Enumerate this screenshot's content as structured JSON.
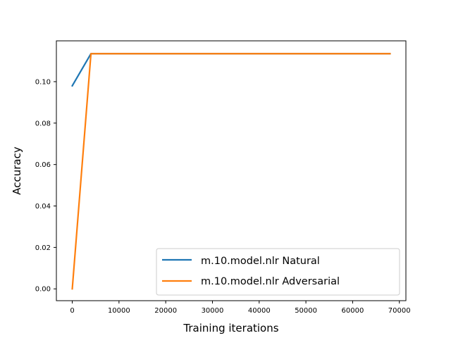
{
  "chart_data": {
    "type": "line",
    "title": "",
    "xlabel": "Training iterations",
    "ylabel": "Accuracy",
    "xlim": [
      -3400,
      71400
    ],
    "ylim": [
      -0.0057,
      0.1197
    ],
    "xticks": [
      0,
      10000,
      20000,
      30000,
      40000,
      50000,
      60000,
      70000
    ],
    "xtick_labels": [
      "0",
      "10000",
      "20000",
      "30000",
      "40000",
      "50000",
      "60000",
      "70000"
    ],
    "yticks": [
      0.0,
      0.02,
      0.04,
      0.06,
      0.08,
      0.1
    ],
    "ytick_labels": [
      "0.00",
      "0.02",
      "0.04",
      "0.06",
      "0.08",
      "0.10"
    ],
    "grid": false,
    "legend_position": "lower-right",
    "series": [
      {
        "name": "m.10.model.nlr Natural",
        "color": "#1f77b4",
        "x": [
          0,
          4000,
          68000
        ],
        "y": [
          0.098,
          0.1135,
          0.1135
        ]
      },
      {
        "name": "m.10.model.nlr Adversarial",
        "color": "#ff7f0e",
        "x": [
          0,
          4000,
          68000
        ],
        "y": [
          0.0,
          0.1135,
          0.1135
        ]
      }
    ]
  }
}
